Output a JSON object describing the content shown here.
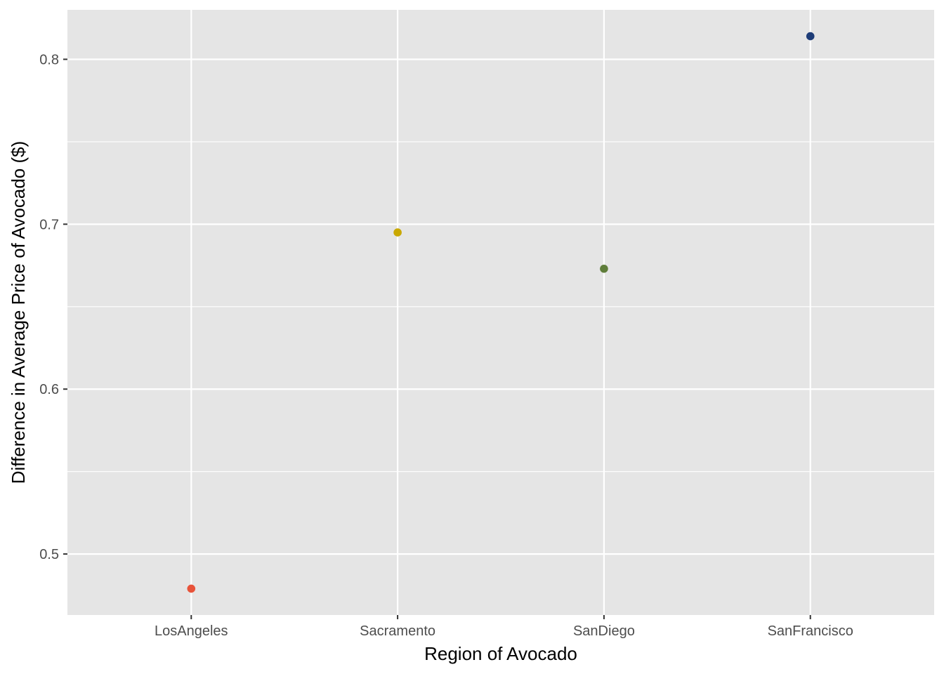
{
  "chart_data": {
    "type": "scatter",
    "title": "",
    "xlabel": "Region of Avocado",
    "ylabel": "Difference in Average Price of Avocado ($)",
    "categories": [
      "LosAngeles",
      "Sacramento",
      "SanDiego",
      "SanFrancisco"
    ],
    "values": [
      0.479,
      0.695,
      0.673,
      0.814
    ],
    "point_colors": [
      "#e8533a",
      "#c9a800",
      "#5f7d3a",
      "#1e3d78"
    ],
    "ylim": [
      0.463,
      0.83
    ],
    "yticks": [
      0.5,
      0.6,
      0.7,
      0.8
    ],
    "ytick_labels": [
      "0.5",
      "0.6",
      "0.7",
      "0.8"
    ],
    "yminor": [
      0.55,
      0.65,
      0.75
    ],
    "grid": true,
    "legend": "none",
    "panel_color": "#e5e5e5",
    "grid_color": "#ffffff"
  }
}
